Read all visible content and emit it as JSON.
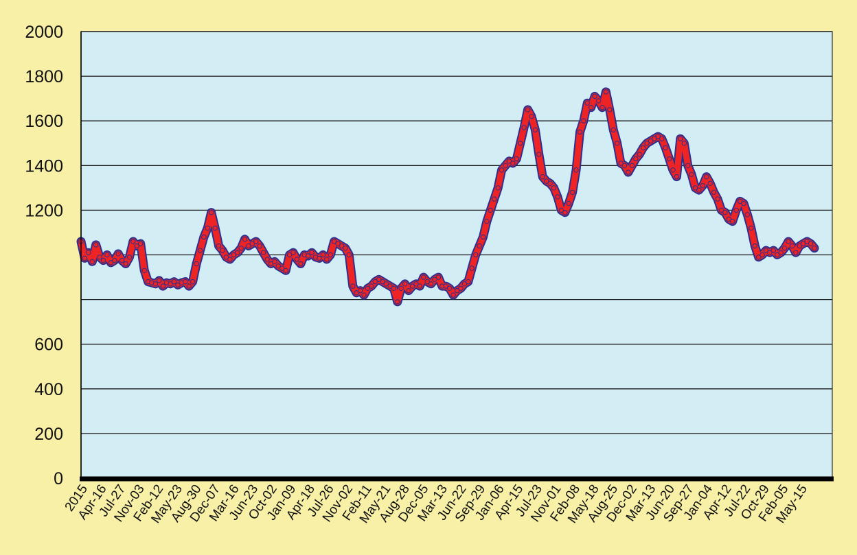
{
  "colors": {
    "page_background": "#f7f0a6",
    "plot_background": "#d3edf5",
    "gridline": "#1a1a1a",
    "axis": "#000000",
    "series_outline": "#2b2f8f",
    "series_fill": "#ee2424"
  },
  "chart_data": {
    "type": "line",
    "title": "",
    "xlabel": "",
    "ylabel": "",
    "ylim": [
      0,
      2000
    ],
    "grid": true,
    "y_ticks": [
      0,
      200,
      400,
      600,
      800,
      1000,
      1200,
      1400,
      1600,
      1800,
      2000
    ],
    "y_tick_labels": [
      "0",
      "200",
      "400",
      "600",
      "",
      "",
      "1200",
      "1400",
      "1600",
      "1800",
      "2000"
    ],
    "x_tick_labels": [
      "2015",
      "Apr-16",
      "Jul-27",
      "Nov-03",
      "Feb-12",
      "May-23",
      "Aug-30",
      "Dec-07",
      "Mar-16",
      "Jun-23",
      "Oct-02",
      "Jan-09",
      "Apr-18",
      "Jul-26",
      "Nov-02",
      "Feb-11",
      "May-21",
      "Aug-28",
      "Dec-05",
      "Mar-13",
      "Jun-22",
      "Sep-29",
      "Jan-06",
      "Apr-15",
      "Jul-23",
      "Nov-01",
      "Feb-08",
      "May-18",
      "Aug-25",
      "Dec-02",
      "Mar-13",
      "Jun-20",
      "Sep-27",
      "Jan-04",
      "Apr-12",
      "Jul-22",
      "Oct-29",
      "Feb-05",
      "May-15"
    ],
    "series": [
      {
        "values": [
          1060,
          985,
          1010,
          970,
          1045,
          990,
          975,
          1000,
          965,
          975,
          1005,
          975,
          960,
          990,
          1060,
          1040,
          1050,
          930,
          880,
          875,
          870,
          885,
          860,
          875,
          870,
          880,
          865,
          875,
          880,
          860,
          880,
          960,
          1020,
          1080,
          1120,
          1190,
          1120,
          1040,
          1020,
          990,
          980,
          1000,
          1010,
          1030,
          1070,
          1040,
          1050,
          1060,
          1040,
          1010,
          980,
          960,
          970,
          950,
          940,
          930,
          1000,
          1010,
          980,
          960,
          1000,
          995,
          1010,
          990,
          985,
          1000,
          980,
          1000,
          1060,
          1050,
          1040,
          1030,
          1000,
          860,
          830,
          840,
          820,
          850,
          860,
          880,
          890,
          880,
          870,
          860,
          850,
          790,
          850,
          870,
          840,
          860,
          870,
          860,
          900,
          880,
          870,
          890,
          900,
          860,
          860,
          850,
          820,
          840,
          850,
          870,
          880,
          940,
          1000,
          1040,
          1080,
          1150,
          1200,
          1250,
          1300,
          1380,
          1400,
          1420,
          1410,
          1430,
          1500,
          1570,
          1650,
          1620,
          1560,
          1450,
          1350,
          1330,
          1320,
          1300,
          1260,
          1200,
          1190,
          1230,
          1280,
          1380,
          1550,
          1600,
          1680,
          1660,
          1710,
          1690,
          1660,
          1730,
          1650,
          1560,
          1500,
          1410,
          1400,
          1370,
          1400,
          1430,
          1450,
          1480,
          1500,
          1510,
          1520,
          1530,
          1520,
          1480,
          1430,
          1380,
          1350,
          1520,
          1500,
          1400,
          1360,
          1300,
          1290,
          1310,
          1350,
          1320,
          1280,
          1250,
          1200,
          1190,
          1160,
          1150,
          1200,
          1240,
          1230,
          1180,
          1120,
          1040,
          990,
          1000,
          1020,
          1010,
          1020,
          1000,
          1010,
          1030,
          1060,
          1040,
          1010,
          1040,
          1050,
          1060,
          1050,
          1030
        ]
      }
    ]
  }
}
